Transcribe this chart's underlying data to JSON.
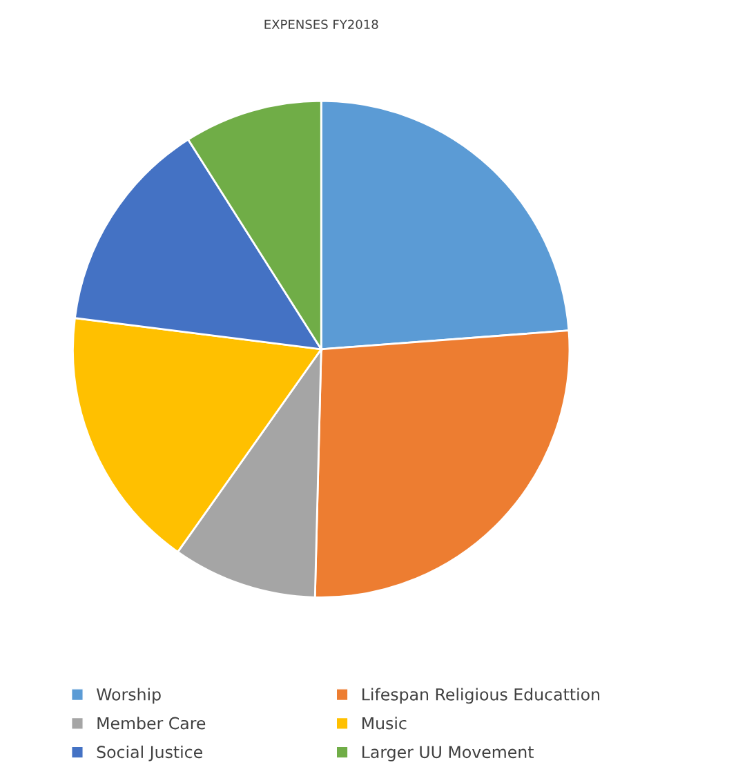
{
  "chart_data": {
    "type": "pie",
    "title": "EXPENSES FY2018",
    "categories": [
      "Worship",
      "Lifespan Religious Educattion",
      "Member Care",
      "Music",
      "Social Justice",
      "Larger UU Movement"
    ],
    "values": [
      23.8,
      26.6,
      9.4,
      17.2,
      14.0,
      9.0
    ],
    "colors": [
      "#5b9bd5",
      "#ed7d31",
      "#a5a5a5",
      "#ffc000",
      "#4472c4",
      "#70ad47"
    ],
    "legend": "bottom"
  }
}
